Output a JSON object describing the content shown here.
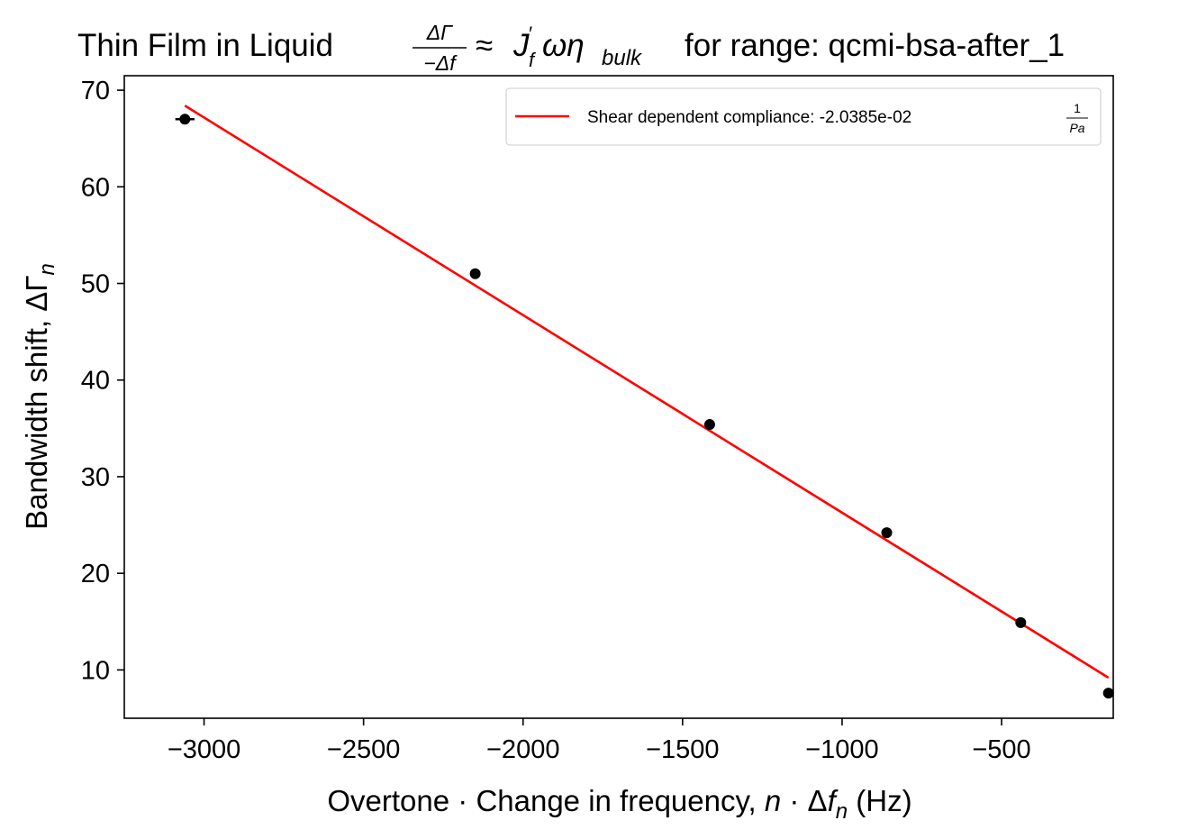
{
  "chart_data": {
    "type": "scatter",
    "title": {
      "prefix": "Thin Film in Liquid ",
      "frac_num": "ΔΓ",
      "frac_den": "−Δf",
      "approx": "≈",
      "j": "J",
      "j_sup": "′",
      "j_sub": "f",
      "omega_eta": "ωη",
      "bulk": "bulk",
      "suffix": "for range: qcmi-bsa-after_1"
    },
    "xlabel": {
      "text": "Overtone · Change in frequency, ",
      "n": "n",
      "dot": " · Δ",
      "f": "f",
      "sub": "n",
      "unit": " (Hz)"
    },
    "ylabel": {
      "text": "Bandwidth shift, ΔΓ",
      "sub": "n"
    },
    "xlim": [
      -3250,
      -150
    ],
    "ylim": [
      5,
      71.5
    ],
    "xticks": [
      {
        "value": -3000,
        "label": "−3000"
      },
      {
        "value": -2500,
        "label": "−2500"
      },
      {
        "value": -2000,
        "label": "−2000"
      },
      {
        "value": -1500,
        "label": "−1500"
      },
      {
        "value": -1000,
        "label": "−1000"
      },
      {
        "value": -500,
        "label": "−500"
      }
    ],
    "yticks": [
      {
        "value": 10,
        "label": "10"
      },
      {
        "value": 20,
        "label": "20"
      },
      {
        "value": 30,
        "label": "30"
      },
      {
        "value": 40,
        "label": "40"
      },
      {
        "value": 50,
        "label": "50"
      },
      {
        "value": 60,
        "label": "60"
      },
      {
        "value": 70,
        "label": "70"
      }
    ],
    "points": [
      {
        "x": -3060,
        "y": 67.0,
        "xerr": 30
      },
      {
        "x": -2150,
        "y": 51.0
      },
      {
        "x": -1415,
        "y": 35.4
      },
      {
        "x": -860,
        "y": 24.2
      },
      {
        "x": -440,
        "y": 14.9
      },
      {
        "x": -165,
        "y": 7.6
      }
    ],
    "point_color": "#000000",
    "fit_line": {
      "x": [
        -3060,
        -165
      ],
      "y": [
        68.4,
        9.2
      ],
      "color": "#ff0000"
    },
    "legend": {
      "position": "top-right",
      "label": "Shear dependent compliance: -2.0385e-02 ",
      "frac_num": "1",
      "frac_den": "Pa"
    },
    "grid": false
  }
}
